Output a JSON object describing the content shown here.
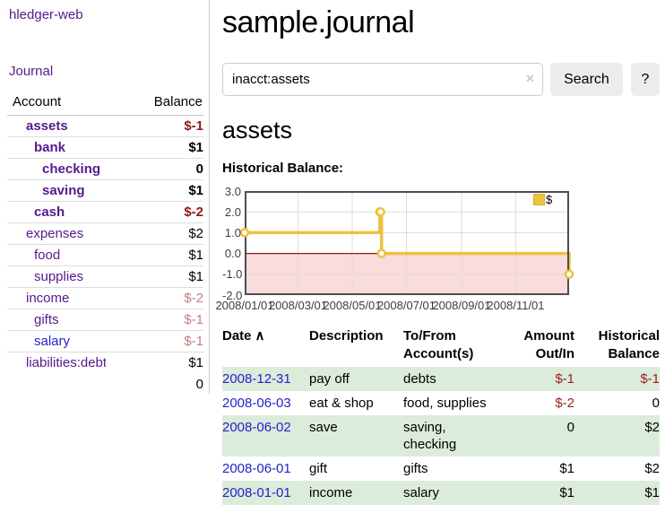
{
  "brand": {
    "label": "hledger-web"
  },
  "nav": {
    "journal": "Journal"
  },
  "colors": {
    "link_purple": "#551a8b",
    "link_blue": "#2222cc",
    "negative_strong": "#941616",
    "negative_soft": "#c08080",
    "negative_register": "#9e2020",
    "row_green": "#dcecdb"
  },
  "sidebar": {
    "columns": {
      "account": "Account",
      "balance": "Balance"
    },
    "rows": [
      {
        "account": "assets",
        "balance": "$-1",
        "level": 1,
        "bold": true,
        "amount_style": "neg-strong"
      },
      {
        "account": "bank",
        "balance": "$1",
        "level": 2,
        "bold": true,
        "amount_style": "plain"
      },
      {
        "account": "checking",
        "balance": "0",
        "level": 3,
        "bold": true,
        "amount_style": "plain"
      },
      {
        "account": "saving",
        "balance": "$1",
        "level": 3,
        "bold": true,
        "amount_style": "plain"
      },
      {
        "account": "cash",
        "balance": "$-2",
        "level": 2,
        "bold": true,
        "amount_style": "neg-strong"
      },
      {
        "account": "expenses",
        "balance": "$2",
        "level": 1,
        "bold": false,
        "amount_style": "plain"
      },
      {
        "account": "food",
        "balance": "$1",
        "level": 2,
        "bold": false,
        "amount_style": "plain"
      },
      {
        "account": "supplies",
        "balance": "$1",
        "level": 2,
        "bold": false,
        "amount_style": "plain"
      },
      {
        "account": "income",
        "balance": "$-2",
        "level": 1,
        "bold": false,
        "amount_style": "neg-soft"
      },
      {
        "account": "gifts",
        "balance": "$-1",
        "level": 2,
        "bold": false,
        "amount_style": "neg-soft"
      },
      {
        "account": "salary",
        "balance": "$-1",
        "level": 2,
        "bold": false,
        "amount_style": "neg-soft",
        "link_color": "blue"
      },
      {
        "account": "liabilities:debts",
        "balance": "$1",
        "level": 1,
        "bold": false,
        "amount_style": "plain"
      }
    ],
    "total": "0"
  },
  "main": {
    "title": "sample.journal",
    "search": {
      "value": "inacct:assets",
      "clear_label": "×",
      "search_button": "Search",
      "help_button": "?"
    },
    "account_title": "assets",
    "chart_title": "Historical Balance:"
  },
  "chart_data": {
    "type": "line",
    "step": true,
    "xlim": [
      "2008-01-01",
      "2008-12-31"
    ],
    "ylim": [
      -2,
      3
    ],
    "y_ticks": [
      "3.0",
      "2.0",
      "1.0",
      "0.0",
      "-1.0",
      "-2.0"
    ],
    "x_tick_dates": [
      "2008-01-01",
      "2008-03-01",
      "2008-05-01",
      "2008-07-01",
      "2008-09-01",
      "2008-11-01"
    ],
    "x_tick_labels": [
      "2008/01/01",
      "2008/03/01",
      "2008/05/01",
      "2008/07/01",
      "2008/09/01",
      "2008/11/01"
    ],
    "series": [
      {
        "name": "$",
        "color": "#edc240",
        "points": [
          {
            "date": "2008-01-01",
            "value": 1
          },
          {
            "date": "2008-06-01",
            "value": 2
          },
          {
            "date": "2008-06-02",
            "value": 2
          },
          {
            "date": "2008-06-03",
            "value": 0
          },
          {
            "date": "2008-12-31",
            "value": -1
          }
        ]
      }
    ],
    "legend": {
      "label": "$",
      "position": "top-right"
    },
    "colors": {
      "negative_region": "#fadcdc",
      "zero_line": "#8c1a1a",
      "grid": "#dcdcdc",
      "border": "#4d4d4d",
      "marker_fill": "#ffffff"
    }
  },
  "register": {
    "headers": {
      "date": "Date",
      "sort_indicator": "∧",
      "description": "Description",
      "accounts": "To/From Account(s)",
      "amount": "Amount Out/In",
      "balance": "Historical Balance"
    },
    "rows": [
      {
        "date": "2008-12-31",
        "description": "pay off",
        "accounts": "debts",
        "amount": "$-1",
        "balance": "$-1",
        "amount_negative": true,
        "balance_negative": true
      },
      {
        "date": "2008-06-03",
        "description": "eat & shop",
        "accounts": "food, supplies",
        "amount": "$-2",
        "balance": "0",
        "amount_negative": true,
        "balance_negative": false
      },
      {
        "date": "2008-06-02",
        "description": "save",
        "accounts": "saving, checking",
        "amount": "0",
        "balance": "$2",
        "amount_negative": false,
        "balance_negative": false
      },
      {
        "date": "2008-06-01",
        "description": "gift",
        "accounts": "gifts",
        "amount": "$1",
        "balance": "$2",
        "amount_negative": false,
        "balance_negative": false
      },
      {
        "date": "2008-01-01",
        "description": "income",
        "accounts": "salary",
        "amount": "$1",
        "balance": "$1",
        "amount_negative": false,
        "balance_negative": false
      }
    ]
  }
}
